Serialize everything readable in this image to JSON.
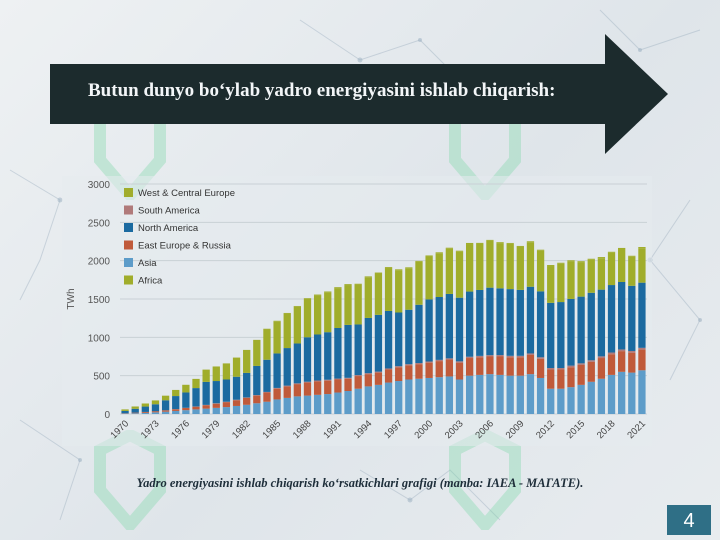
{
  "slide": {
    "title": "Butun dunyo bo‘ylab yadro energiyasini ishlab chiqarish:",
    "caption": "Yadro energiyasini ishlab chiqarish ko‘rsatkichlari grafigi (manba: IAEA - МАГАТЕ).",
    "page_number": "4"
  },
  "colors": {
    "banner": "#1c2b2d",
    "West & Central Europe": "#a0ad2b",
    "South America": "#b07a7a",
    "North America": "#1b6aa0",
    "East Europe & Russia": "#c05a3a",
    "Asia": "#5d9cc9",
    "Africa": "#a0ad2b"
  },
  "chart_data": {
    "type": "bar",
    "stacked": true,
    "xlabel": "",
    "ylabel": "TWh",
    "ylim": [
      0,
      3000
    ],
    "yticks": [
      0,
      500,
      1000,
      1500,
      2000,
      2500,
      3000
    ],
    "xticks": [
      "1970",
      "1973",
      "1976",
      "1979",
      "1982",
      "1985",
      "1988",
      "1991",
      "1994",
      "1997",
      "2000",
      "2003",
      "2006",
      "2009",
      "2012",
      "2015",
      "2018",
      "2021"
    ],
    "legend": [
      "West & Central Europe",
      "South America",
      "North America",
      "East Europe & Russia",
      "Asia",
      "Africa"
    ],
    "legend_position": "top-left",
    "grid": true,
    "categories": [
      1970,
      1971,
      1972,
      1973,
      1974,
      1975,
      1976,
      1977,
      1978,
      1979,
      1980,
      1981,
      1982,
      1983,
      1984,
      1985,
      1986,
      1987,
      1988,
      1989,
      1990,
      1991,
      1992,
      1993,
      1994,
      1995,
      1996,
      1997,
      1998,
      1999,
      2000,
      2001,
      2002,
      2003,
      2004,
      2005,
      2006,
      2007,
      2008,
      2009,
      2010,
      2011,
      2012,
      2013,
      2014,
      2015,
      2016,
      2017,
      2018,
      2019,
      2020,
      2021
    ],
    "series": [
      {
        "name": "Asia",
        "values": [
          5,
          10,
          15,
          22,
          30,
          40,
          50,
          60,
          70,
          80,
          90,
          105,
          120,
          140,
          160,
          190,
          210,
          230,
          240,
          250,
          260,
          280,
          300,
          330,
          360,
          380,
          410,
          430,
          450,
          460,
          470,
          480,
          490,
          450,
          500,
          510,
          520,
          510,
          500,
          500,
          520,
          470,
          330,
          330,
          350,
          380,
          420,
          460,
          510,
          550,
          540,
          570
        ]
      },
      {
        "name": "East Europe & Russia",
        "values": [
          5,
          8,
          12,
          15,
          18,
          22,
          28,
          35,
          45,
          55,
          65,
          75,
          90,
          100,
          120,
          140,
          150,
          160,
          170,
          175,
          175,
          170,
          160,
          165,
          160,
          160,
          170,
          180,
          185,
          190,
          200,
          210,
          220,
          220,
          230,
          230,
          230,
          240,
          240,
          240,
          250,
          250,
          250,
          250,
          260,
          260,
          260,
          270,
          270,
          270,
          260,
          270
        ]
      },
      {
        "name": "South America",
        "values": [
          0,
          0,
          0,
          0,
          1,
          2,
          3,
          3,
          4,
          5,
          5,
          6,
          6,
          7,
          8,
          10,
          10,
          10,
          11,
          12,
          12,
          12,
          12,
          13,
          13,
          13,
          14,
          14,
          15,
          15,
          15,
          16,
          16,
          17,
          17,
          18,
          18,
          19,
          19,
          19,
          20,
          20,
          20,
          20,
          21,
          21,
          21,
          22,
          22,
          22,
          22,
          23
        ]
      },
      {
        "name": "North America",
        "values": [
          30,
          50,
          70,
          90,
          130,
          170,
          200,
          240,
          300,
          290,
          290,
          300,
          320,
          380,
          420,
          450,
          490,
          520,
          580,
          600,
          620,
          660,
          690,
          660,
          720,
          740,
          750,
          700,
          710,
          760,
          810,
          820,
          840,
          830,
          850,
          860,
          880,
          870,
          870,
          860,
          870,
          860,
          850,
          860,
          870,
          870,
          880,
          870,
          880,
          880,
          850,
          850
        ]
      },
      {
        "name": "West & Central Europe",
        "values": [
          20,
          30,
          40,
          50,
          60,
          80,
          100,
          120,
          160,
          190,
          210,
          250,
          300,
          340,
          400,
          420,
          450,
          480,
          500,
          510,
          520,
          520,
          520,
          520,
          530,
          540,
          560,
          550,
          540,
          560,
          560,
          570,
          590,
          600,
          620,
          600,
          610,
          590,
          590,
          560,
          580,
          530,
          480,
          500,
          490,
          450,
          430,
          410,
          420,
          430,
          380,
          450
        ]
      },
      {
        "name": "Africa",
        "values": [
          0,
          0,
          0,
          0,
          0,
          0,
          0,
          0,
          0,
          0,
          0,
          0,
          0,
          0,
          4,
          6,
          8,
          9,
          10,
          11,
          11,
          12,
          12,
          11,
          12,
          12,
          12,
          13,
          13,
          12,
          13,
          13,
          13,
          13,
          14,
          14,
          13,
          12,
          12,
          13,
          13,
          13,
          13,
          13,
          14,
          12,
          14,
          15,
          14,
          14,
          12,
          15
        ]
      }
    ]
  }
}
